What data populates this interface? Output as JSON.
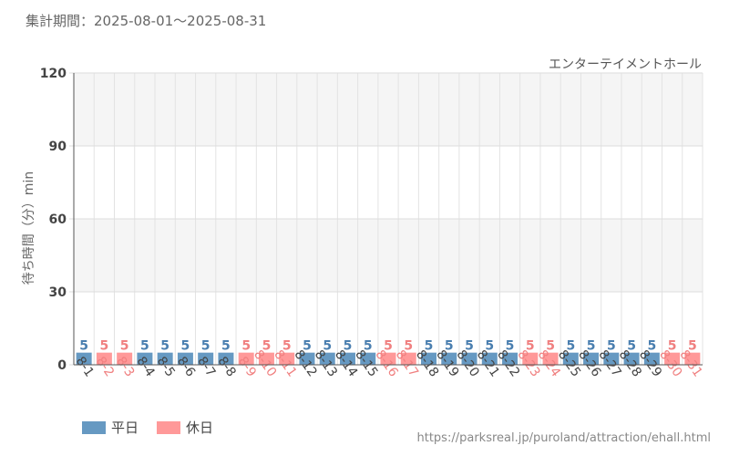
{
  "header": {
    "period": "集計期間：2025-08-01～2025-08-31",
    "attraction": "エンターテイメントホール"
  },
  "legend": {
    "weekday_label": "平日",
    "holiday_label": "休日"
  },
  "colors": {
    "weekday": "#6699c2",
    "holiday": "#ff9999",
    "weekday_text": "#4a7fb0",
    "holiday_text": "#f08080"
  },
  "source": "https://parksreal.jp/puroland/attraction/ehall.html",
  "chart_data": {
    "type": "bar",
    "title": "",
    "xlabel": "",
    "ylabel": "待ち時間（分）min",
    "ylim": [
      0,
      120
    ],
    "yticks": [
      "0",
      "30",
      "60",
      "90",
      "120"
    ],
    "categories": [
      "8-1",
      "8-2",
      "8-3",
      "8-4",
      "8-5",
      "8-6",
      "8-7",
      "8-8",
      "8-9",
      "8-10",
      "8-11",
      "8-12",
      "8-13",
      "8-14",
      "8-15",
      "8-16",
      "8-17",
      "8-18",
      "8-19",
      "8-20",
      "8-21",
      "8-22",
      "8-23",
      "8-24",
      "8-25",
      "8-26",
      "8-27",
      "8-28",
      "8-29",
      "8-30",
      "8-31"
    ],
    "values": [
      5,
      5,
      5,
      5,
      5,
      5,
      5,
      5,
      5,
      5,
      5,
      5,
      5,
      5,
      5,
      5,
      5,
      5,
      5,
      5,
      5,
      5,
      5,
      5,
      5,
      5,
      5,
      5,
      5,
      5,
      5
    ],
    "day_type": [
      "weekday",
      "holiday",
      "holiday",
      "weekday",
      "weekday",
      "weekday",
      "weekday",
      "weekday",
      "holiday",
      "holiday",
      "holiday",
      "weekday",
      "weekday",
      "weekday",
      "weekday",
      "holiday",
      "holiday",
      "weekday",
      "weekday",
      "weekday",
      "weekday",
      "weekday",
      "holiday",
      "holiday",
      "weekday",
      "weekday",
      "weekday",
      "weekday",
      "weekday",
      "holiday",
      "holiday"
    ],
    "grid": true,
    "legend_position": "bottom-left"
  }
}
